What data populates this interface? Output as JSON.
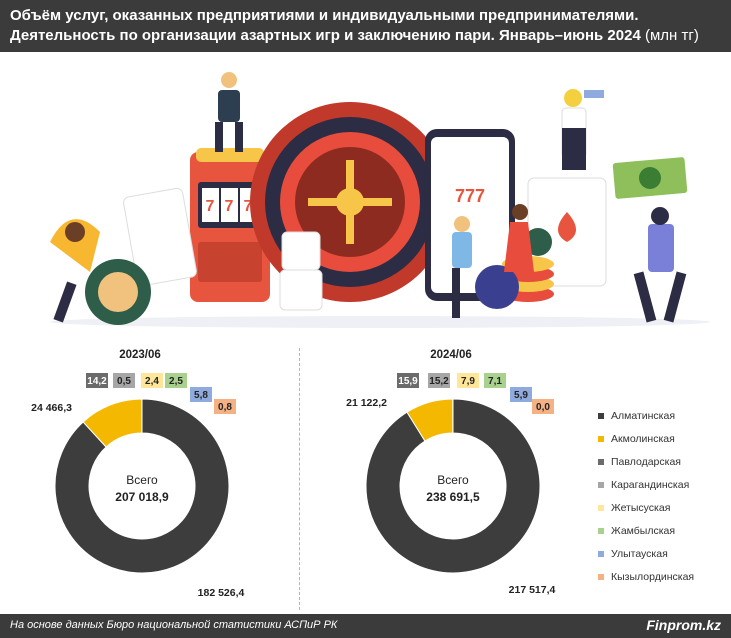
{
  "header": {
    "title_line1": "Объём услуг, оказанных предприятиями и индивидуальными предпринимателями.",
    "title_line2": "Деятельность по организации азартных игр и заключению пари. Январь–июнь 2024",
    "unit": "(млн тг)"
  },
  "footer": {
    "source": "На основе данных Бюро национальной статистики АСПиР РК",
    "brand": "Finprom.kz"
  },
  "colors": {
    "header_bg": "#3b3b3b",
    "divider": "#f2b705"
  },
  "legend": [
    {
      "name": "Алматинская",
      "color": "#3d3d3d"
    },
    {
      "name": "Акмолинская",
      "color": "#f5b800"
    },
    {
      "name": "Павлодарская",
      "color": "#6b6b6b"
    },
    {
      "name": "Карагандинская",
      "color": "#a6a6a6"
    },
    {
      "name": "Жетысуская",
      "color": "#ffe699"
    },
    {
      "name": "Жамбылская",
      "color": "#a9d18e"
    },
    {
      "name": "Улытауская",
      "color": "#8faadc"
    },
    {
      "name": "Кызылординская",
      "color": "#f4b183"
    }
  ],
  "chart_data": [
    {
      "type": "pie",
      "title": "2023/06",
      "center_label": "Всего",
      "total": "207 018,9",
      "categories": [
        "Алматинская",
        "Акмолинская",
        "Павлодарская",
        "Карагандинская",
        "Жетысуская",
        "Жамбылская",
        "Улытауская",
        "Кызылординская"
      ],
      "values": [
        182526.4,
        24466.3,
        14.2,
        0.5,
        2.4,
        2.5,
        5.8,
        0.8
      ],
      "labels": [
        "182 526,4",
        "24 466,3",
        "14,2",
        "0,5",
        "2,4",
        "2,5",
        "5,8",
        "0,8"
      ]
    },
    {
      "type": "pie",
      "title": "2024/06",
      "center_label": "Всего",
      "total": "238 691,5",
      "categories": [
        "Алматинская",
        "Акмолинская",
        "Павлодарская",
        "Карагандинская",
        "Жетысуская",
        "Жамбылская",
        "Улытауская",
        "Кызылординская"
      ],
      "values": [
        217517.4,
        21122.2,
        15.9,
        15.2,
        7.9,
        7.1,
        5.9,
        0.0
      ],
      "labels": [
        "217 517,4",
        "21 122,2",
        "15,9",
        "15,2",
        "7,9",
        "7,1",
        "5,9",
        "0,0"
      ]
    }
  ]
}
